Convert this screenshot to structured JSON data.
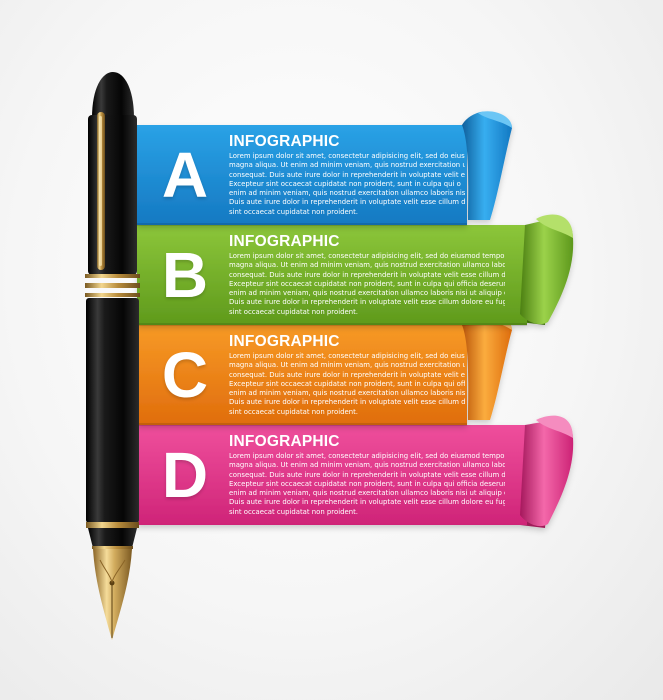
{
  "colors": {
    "blue": "#1d8fd6",
    "green": "#77b52a",
    "orange": "#f28a1a",
    "magenta": "#e93a8e",
    "pen_body": "#111111",
    "gold": "#c9a45a"
  },
  "steps": [
    {
      "letter": "A",
      "heading": "INFOGRAPHIC",
      "lines": [
        "Lorem ipsum dolor sit amet, consectetur adipisicing elit, sed do eius",
        "magna aliqua. Ut enim ad minim veniam, quis nostrud exercitation u",
        "consequat. Duis aute irure dolor in reprehenderit in voluptate velit e",
        "Excepteur sint occaecat cupidatat non proident, sunt in culpa qui o",
        "enim ad minim veniam, quis nostrud exercitation ullamco laboris nis",
        "Duis aute irure dolor in reprehenderit in voluptate velit esse cillum d",
        "sint occaecat cupidatat non proident."
      ]
    },
    {
      "letter": "B",
      "heading": "INFOGRAPHIC",
      "lines": [
        "Lorem ipsum dolor sit amet, consectetur adipisicing elit, sed do eiusmod tempor incidi",
        "magna aliqua. Ut enim ad minim veniam, quis nostrud exercitation ullamco laboris nisi",
        "consequat. Duis aute irure dolor in reprehenderit in voluptate velit esse cillum dolore e",
        "Excepteur sint occaecat cupidatat non proident, sunt in culpa qui officia deserunt mollit",
        "enim ad minim veniam, quis nostrud exercitation ullamco laboris nisi ut aliquip ex ea co",
        "Duis aute irure dolor in reprehenderit in voluptate velit esse cillum dolore eu fugiat null",
        "sint occaecat cupidatat non proident."
      ]
    },
    {
      "letter": "C",
      "heading": "INFOGRAPHIC",
      "lines": [
        "Lorem ipsum dolor sit amet, consectetur adipisicing elit, sed do eius",
        "magna aliqua. Ut enim ad minim veniam, quis nostrud exercitation ul",
        "consequat. Duis aute irure dolor in reprehenderit in voluptate velit es",
        "Excepteur sint occaecat cupidatat non proident, sunt in culpa qui offi",
        "enim ad minim veniam, quis nostrud exercitation ullamco laboris nisi",
        "Duis aute irure dolor in reprehenderit in voluptate velit esse cillum d",
        "sint occaecat cupidatat non proident."
      ]
    },
    {
      "letter": "D",
      "heading": "INFOGRAPHIC",
      "lines": [
        "Lorem ipsum dolor sit amet, consectetur adipisicing elit, sed do eiusmod tempor incidi",
        "magna aliqua. Ut enim ad minim veniam, quis nostrud exercitation ullamco laboris nisi",
        "consequat. Duis aute irure dolor in reprehenderit in voluptate velit esse cillum dolore e",
        "Excepteur sint occaecat cupidatat non proident, sunt in culpa qui officia deserunt mollit",
        "enim ad minim veniam, quis nostrud exercitation ullamco laboris nisi ut aliquip ex ea c",
        "Duis aute irure dolor in reprehenderit in voluptate velit esse cillum dolore eu fugiat null",
        "sint occaecat cupidatat non proident."
      ]
    }
  ]
}
